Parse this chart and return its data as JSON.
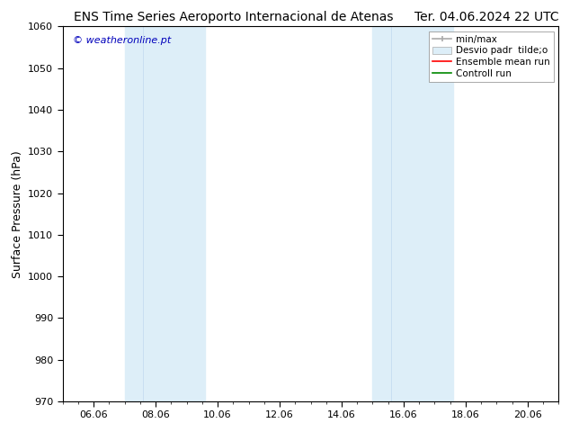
{
  "title_left": "ENS Time Series Aeroporto Internacional de Atenas",
  "title_right": "Ter. 04.06.2024 22 UTC",
  "ylabel": "Surface Pressure (hPa)",
  "ylim": [
    970,
    1060
  ],
  "yticks": [
    970,
    980,
    990,
    1000,
    1010,
    1020,
    1030,
    1040,
    1050,
    1060
  ],
  "xtick_labels": [
    "06.06",
    "08.06",
    "10.06",
    "12.06",
    "14.06",
    "16.06",
    "18.06",
    "20.06"
  ],
  "xtick_positions": [
    1,
    3,
    5,
    7,
    9,
    11,
    13,
    15
  ],
  "x_total_min": 0,
  "x_total_max": 16,
  "shaded_regions": [
    {
      "xstart": 2.0,
      "xend": 3.0,
      "color": "#ddeef8"
    },
    {
      "xstart": 3.0,
      "xend": 4.5,
      "color": "#ddeef8"
    },
    {
      "xstart": 10.0,
      "xend": 11.0,
      "color": "#ddeef8"
    },
    {
      "xstart": 11.0,
      "xend": 12.5,
      "color": "#ddeef8"
    }
  ],
  "watermark": "© weatheronline.pt",
  "watermark_color": "#0000bb",
  "background_color": "#ffffff",
  "plot_bg_color": "#ffffff",
  "title_fontsize": 10,
  "tick_fontsize": 8,
  "ylabel_fontsize": 9,
  "legend_fontsize": 7.5
}
